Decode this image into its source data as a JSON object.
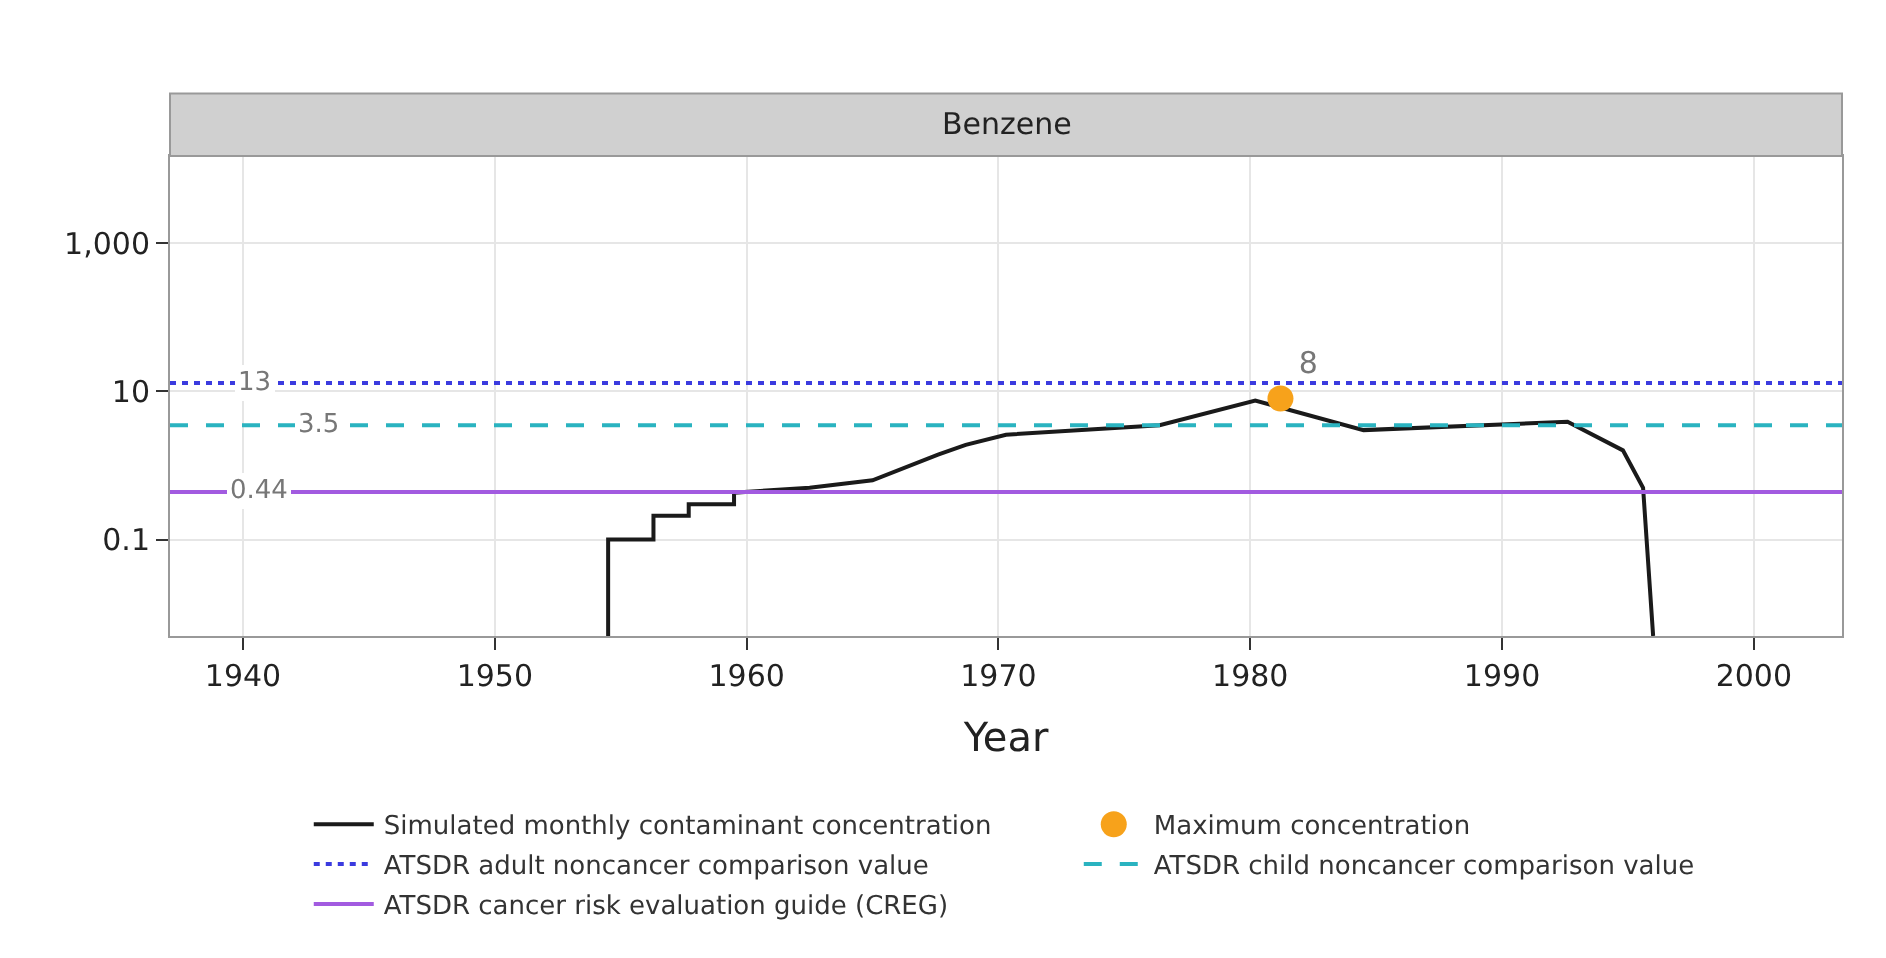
{
  "chart_data": {
    "type": "line",
    "title": "Benzene",
    "xlabel": "Year",
    "xlim": [
      1937.1,
      2003.5
    ],
    "xticks": [
      1940,
      1950,
      1960,
      1970,
      1980,
      1990,
      2000
    ],
    "ylim": [
      0.005,
      15000
    ],
    "yticks": [
      0.1,
      10,
      {
        "value": 1000,
        "label": "1,000"
      }
    ],
    "log": "y",
    "grid": true,
    "legend": "bottom",
    "series": [
      {
        "name": "Simulated monthly contaminant concentration",
        "color": "#1a1a1a",
        "line_style": "solid",
        "marker": "none",
        "x": [
          1954.5,
          1954.5,
          1956.3,
          1956.3,
          1957.7,
          1957.7,
          1959.5,
          1959.5,
          1962.5,
          1965,
          1967.6,
          1968.7,
          1970.3,
          1976.4,
          1980.2,
          1984.5,
          1992.6,
          1994.8,
          1995.6,
          1996
        ],
        "values": [
          0.005,
          0.1,
          0.1,
          0.21,
          0.21,
          0.3,
          0.3,
          0.43,
          0.5,
          0.63,
          1.4,
          1.9,
          2.6,
          3.5,
          7.5,
          3,
          3.9,
          1.6,
          0.5,
          0.005
        ]
      },
      {
        "name": "Maximum concentration",
        "type": "scatter",
        "color": "#f7a21b",
        "marker": "circle",
        "x": [
          1981.2
        ],
        "values": [
          8
        ],
        "value_labels": [
          "8"
        ]
      },
      {
        "name": "ATSDR adult noncancer comparison value",
        "type": "line",
        "color": "#3b3bdf",
        "line_style": "dotted",
        "marker": "none",
        "x": [
          1937.1,
          2003.5
        ],
        "values": [
          13,
          13
        ]
      },
      {
        "name": "ATSDR child noncancer comparison value",
        "type": "line",
        "color": "#2ab3c0",
        "line_style": "dashed",
        "marker": "none",
        "x": [
          1937.1,
          2003.5
        ],
        "values": [
          3.5,
          3.5
        ]
      },
      {
        "name": "ATSDR cancer risk evaluation guide (CREG)",
        "type": "line",
        "color": "#a25be0",
        "line_style": "solid",
        "marker": "none",
        "x": [
          1937.1,
          2003.5
        ],
        "values": [
          0.44,
          0.44
        ]
      }
    ],
    "annotations": [
      {
        "text": "13",
        "x": 1940.5,
        "y": 13
      },
      {
        "text": "3.5",
        "x": 1943,
        "y": 3.5
      },
      {
        "text": "0.44",
        "x": 1940.6,
        "y": 0.44
      }
    ]
  }
}
